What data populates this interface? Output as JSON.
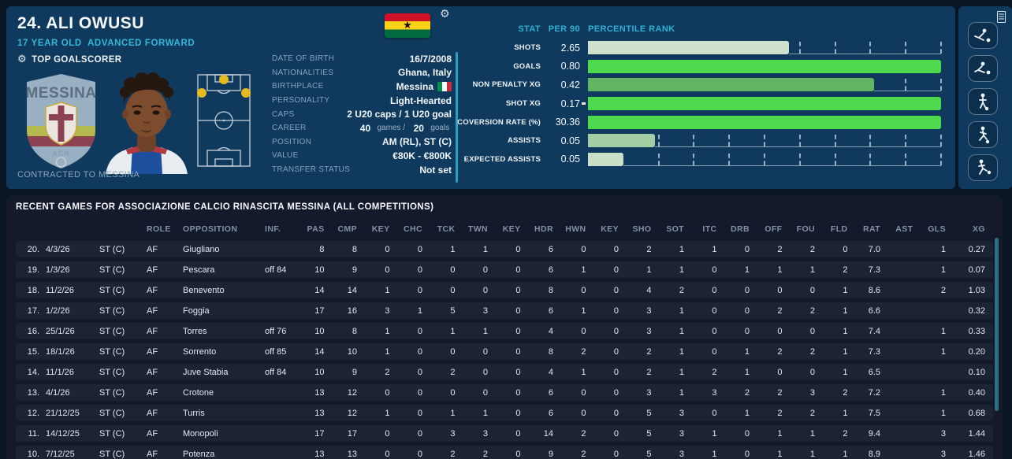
{
  "header": {
    "player_title": "24. ALI OWUSU",
    "player_subtitle": "17 YEAR OLD  ADVANCED FORWARD",
    "badge_label": "TOP GOALSCORER",
    "contracted_label": "CONTRACTED TO MESSINA",
    "club_badge_text": "MESSINA",
    "club_badge_subtext": "ACR",
    "nation_flag": "ghana-flag",
    "gear_icon": "gear-icon"
  },
  "details": {
    "rows": [
      {
        "label": "DATE OF BIRTH",
        "value": "16/7/2008"
      },
      {
        "label": "NATIONALITIES",
        "value": "Ghana, Italy"
      },
      {
        "label": "BIRTHPLACE",
        "value": "Messina",
        "flag": "italy"
      },
      {
        "label": "PERSONALITY",
        "value": "Light-Hearted"
      },
      {
        "label": "CAPS",
        "value": "2 U20 caps / 1 U20 goal"
      },
      {
        "label": "CAREER",
        "parts": [
          {
            "t": "40",
            "c": "strong"
          },
          {
            "t": "games / ",
            "c": "dim"
          },
          {
            "t": "20",
            "c": "strong"
          },
          {
            "t": "goals",
            "c": "dim"
          }
        ]
      },
      {
        "label": "POSITION",
        "value": "AM (RL), ST (C)"
      },
      {
        "label": "VALUE",
        "value": "€80K - €800K"
      },
      {
        "label": "TRANSFER STATUS",
        "value": "Not set"
      }
    ]
  },
  "stats": {
    "col_stat": "STAT",
    "col_per90": "PER 90",
    "col_percentile": "PERCENTILE RANK",
    "colors": {
      "bright_green": "#4dd84d",
      "mid_green": "#63b563",
      "pale_green": "#cfe0cc",
      "assist_green": "#a5cda5",
      "xa_green": "#c9dfc7"
    },
    "rows": [
      {
        "label": "SHOTS",
        "value": "2.65",
        "pct": 57,
        "color": "#cfe0cc"
      },
      {
        "label": "GOALS",
        "value": "0.80",
        "pct": 100,
        "color": "#4dd84d"
      },
      {
        "label": "NON PENALTY XG",
        "value": "0.42",
        "pct": 81,
        "color": "#63b563"
      },
      {
        "label": "SHOT XG",
        "value": "0.17",
        "pct": 100,
        "color": "#4dd84d",
        "marker": true
      },
      {
        "label": "COVERSION RATE (%)",
        "value": "30.36",
        "pct": 100,
        "color": "#4dd84d"
      },
      {
        "label": "ASSISTS",
        "value": "0.05",
        "pct": 19,
        "color": "#a5cda5"
      },
      {
        "label": "EXPECTED ASSISTS",
        "value": "0.05",
        "pct": 10,
        "color": "#c9dfc7"
      }
    ]
  },
  "rail": {
    "icons": [
      "sliding-tackle-icon",
      "tackle-icon",
      "dribbling-icon",
      "running-icon",
      "shooting-icon"
    ],
    "list_icon": "report-list-icon"
  },
  "table": {
    "title": "RECENT GAMES FOR ASSOCIAZIONE CALCIO RINASCITA MESSINA (ALL COMPETITIONS)",
    "headers": [
      "ROLE",
      "OPPOSITION",
      "INF.",
      "PAS",
      "CMP",
      "KEY",
      "CHC",
      "TCK",
      "TWN",
      "KEY",
      "HDR",
      "HWN",
      "KEY",
      "SHO",
      "SOT",
      "ITC",
      "DRB",
      "OFF",
      "FOU",
      "FLD",
      "RAT",
      "AST",
      "GLS",
      "XG"
    ],
    "rows": [
      {
        "num": "20.",
        "date": "4/3/26",
        "pos": "ST (C)",
        "role": "AF",
        "opp": "Giugliano",
        "inf": "",
        "vals": [
          "8",
          "8",
          "0",
          "0",
          "1",
          "1",
          "0",
          "6",
          "0",
          "0",
          "2",
          "1",
          "1",
          "0",
          "2",
          "2",
          "0",
          "7.0",
          "",
          "1",
          "0.27"
        ]
      },
      {
        "num": "19.",
        "date": "1/3/26",
        "pos": "ST (C)",
        "role": "AF",
        "opp": "Pescara",
        "inf": "off 84",
        "vals": [
          "10",
          "9",
          "0",
          "0",
          "0",
          "0",
          "0",
          "6",
          "1",
          "0",
          "1",
          "1",
          "0",
          "1",
          "1",
          "1",
          "2",
          "7.3",
          "",
          "1",
          "0.07"
        ]
      },
      {
        "num": "18.",
        "date": "11/2/26",
        "pos": "ST (C)",
        "role": "AF",
        "opp": "Benevento",
        "inf": "",
        "vals": [
          "14",
          "14",
          "1",
          "0",
          "0",
          "0",
          "0",
          "8",
          "0",
          "0",
          "4",
          "2",
          "0",
          "0",
          "0",
          "0",
          "1",
          "8.6",
          "",
          "2",
          "1.03"
        ]
      },
      {
        "num": "17.",
        "date": "1/2/26",
        "pos": "ST (C)",
        "role": "AF",
        "opp": "Foggia",
        "inf": "",
        "vals": [
          "17",
          "16",
          "3",
          "1",
          "5",
          "3",
          "0",
          "6",
          "1",
          "0",
          "3",
          "1",
          "0",
          "0",
          "2",
          "2",
          "1",
          "6.6",
          "",
          "",
          "0.32"
        ]
      },
      {
        "num": "16.",
        "date": "25/1/26",
        "pos": "ST (C)",
        "role": "AF",
        "opp": "Torres",
        "inf": "off 76",
        "vals": [
          "10",
          "8",
          "1",
          "0",
          "1",
          "1",
          "0",
          "4",
          "0",
          "0",
          "3",
          "1",
          "0",
          "0",
          "0",
          "0",
          "1",
          "7.4",
          "",
          "1",
          "0.33"
        ]
      },
      {
        "num": "15.",
        "date": "18/1/26",
        "pos": "ST (C)",
        "role": "AF",
        "opp": "Sorrento",
        "inf": "off 85",
        "vals": [
          "14",
          "10",
          "1",
          "0",
          "0",
          "0",
          "0",
          "8",
          "2",
          "0",
          "2",
          "1",
          "0",
          "1",
          "2",
          "2",
          "1",
          "7.3",
          "",
          "1",
          "0.20"
        ]
      },
      {
        "num": "14.",
        "date": "11/1/26",
        "pos": "ST (C)",
        "role": "AF",
        "opp": "Juve Stabia",
        "inf": "off 84",
        "vals": [
          "10",
          "9",
          "2",
          "0",
          "2",
          "0",
          "0",
          "4",
          "1",
          "0",
          "2",
          "1",
          "2",
          "1",
          "0",
          "0",
          "1",
          "6.5",
          "",
          "",
          "0.10"
        ]
      },
      {
        "num": "13.",
        "date": "4/1/26",
        "pos": "ST (C)",
        "role": "AF",
        "opp": "Crotone",
        "inf": "",
        "vals": [
          "13",
          "12",
          "0",
          "0",
          "0",
          "0",
          "0",
          "6",
          "0",
          "0",
          "3",
          "1",
          "3",
          "2",
          "2",
          "3",
          "2",
          "7.2",
          "",
          "1",
          "0.40"
        ]
      },
      {
        "num": "12.",
        "date": "21/12/25",
        "pos": "ST (C)",
        "role": "AF",
        "opp": "Turris",
        "inf": "",
        "vals": [
          "13",
          "12",
          "1",
          "0",
          "1",
          "1",
          "0",
          "6",
          "0",
          "0",
          "5",
          "3",
          "0",
          "1",
          "2",
          "2",
          "1",
          "7.5",
          "",
          "1",
          "0.68"
        ]
      },
      {
        "num": "11.",
        "date": "14/12/25",
        "pos": "ST (C)",
        "role": "AF",
        "opp": "Monopoli",
        "inf": "",
        "vals": [
          "17",
          "17",
          "0",
          "0",
          "3",
          "3",
          "0",
          "14",
          "2",
          "0",
          "5",
          "3",
          "1",
          "0",
          "1",
          "1",
          "2",
          "9.4",
          "",
          "3",
          "1.44"
        ]
      },
      {
        "num": "10.",
        "date": "7/12/25",
        "pos": "ST (C)",
        "role": "AF",
        "opp": "Potenza",
        "inf": "",
        "vals": [
          "13",
          "13",
          "0",
          "0",
          "2",
          "2",
          "0",
          "9",
          "2",
          "0",
          "5",
          "3",
          "1",
          "0",
          "1",
          "1",
          "1",
          "8.9",
          "",
          "3",
          "1.46"
        ]
      }
    ]
  }
}
